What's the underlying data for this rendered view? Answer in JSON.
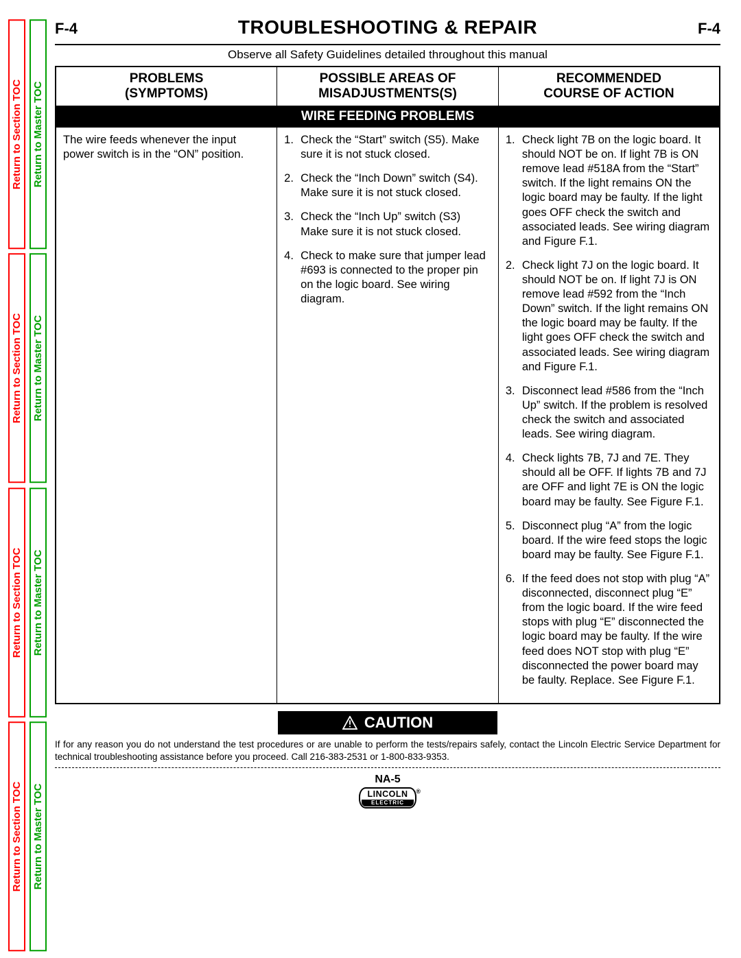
{
  "side_tabs": {
    "section_label": "Return to Section TOC",
    "master_label": "Return to Master TOC",
    "section_color": "#ff0000",
    "master_color": "#00a000"
  },
  "header": {
    "section_code": "F-4",
    "title": "TROUBLESHOOTING & REPAIR"
  },
  "safety_note": "Observe all Safety Guidelines detailed throughout this manual",
  "table": {
    "col1_heading_l1": "PROBLEMS",
    "col1_heading_l2": "(SYMPTOMS)",
    "col2_heading_l1": "POSSIBLE AREAS OF",
    "col2_heading_l2": "MISADJUSTMENTS(S)",
    "col3_heading_l1": "RECOMMENDED",
    "col3_heading_l2": "COURSE OF ACTION",
    "band": "WIRE FEEDING PROBLEMS",
    "symptom": "The wire feeds whenever the input power switch is in the “ON” position.",
    "misadjust": [
      "Check the “Start” switch (S5). Make sure it is not stuck closed.",
      "Check the “Inch Down” switch (S4).  Make sure it is not stuck closed.",
      "Check the “Inch Up” switch (S3) Make sure it is not stuck closed.",
      "Check to make sure that jumper lead #693 is connected to the proper pin on the logic board. See wiring diagram."
    ],
    "action": [
      "Check light 7B on the logic board. It should NOT be on. If light 7B is ON remove lead #518A from the “Start” switch.  If the light remains ON the logic board may be faulty. If the light goes OFF check the switch and associated leads. See wiring diagram and Figure F.1.",
      "Check light 7J on the logic board. It should NOT be on.  If light 7J is ON remove lead #592 from the “Inch Down” switch.  If the light remains ON the logic board may be faulty.  If the light goes OFF check the switch and associated leads.  See wiring diagram and Figure F.1.",
      "Disconnect lead #586 from the “Inch Up” switch.   If the problem is resolved check the switch and associated leads.  See wiring diagram.",
      "Check lights 7B, 7J and 7E. They should all be OFF.  If lights 7B and 7J are OFF and light 7E is ON the logic board may be faulty. See Figure F.1.",
      "Disconnect plug “A” from the logic board.  If the wire feed stops the logic board may be faulty.  See Figure F.1.",
      "If the feed does not stop with plug “A” disconnected, disconnect plug “E” from the logic board.  If the wire feed stops with plug “E” disconnected the logic board may be faulty.  If the wire feed does NOT stop with plug “E” disconnected the power board may be faulty. Replace.  See Figure F.1."
    ]
  },
  "caution_label": "CAUTION",
  "footer_note": "If for any reason you do not understand the test procedures or are unable to perform the tests/repairs safely, contact the Lincoln Electric Service Department for technical troubleshooting assistance before you proceed. Call 216-383-2531 or 1-800-833-9353.",
  "model": "NA-5",
  "logo": {
    "top": "LINCOLN",
    "bot": "ELECTRIC"
  }
}
